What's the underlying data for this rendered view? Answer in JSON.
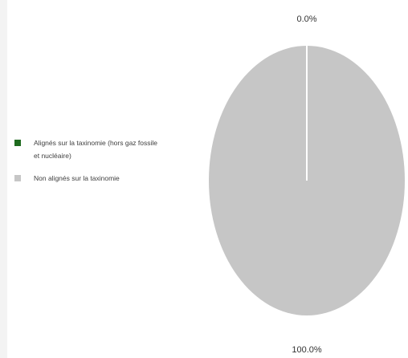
{
  "chart_data": {
    "type": "pie",
    "slices": [
      {
        "label": "Alignés sur la taxinomie (hors gaz fossile et nucléaire)",
        "value": 0.0,
        "display": "0.0%",
        "color": "#1f6b1f"
      },
      {
        "label": "Non alignés sur la taxinomie",
        "value": 100.0,
        "display": "100.0%",
        "color": "#c6c6c6"
      }
    ],
    "legend_position": "left"
  }
}
